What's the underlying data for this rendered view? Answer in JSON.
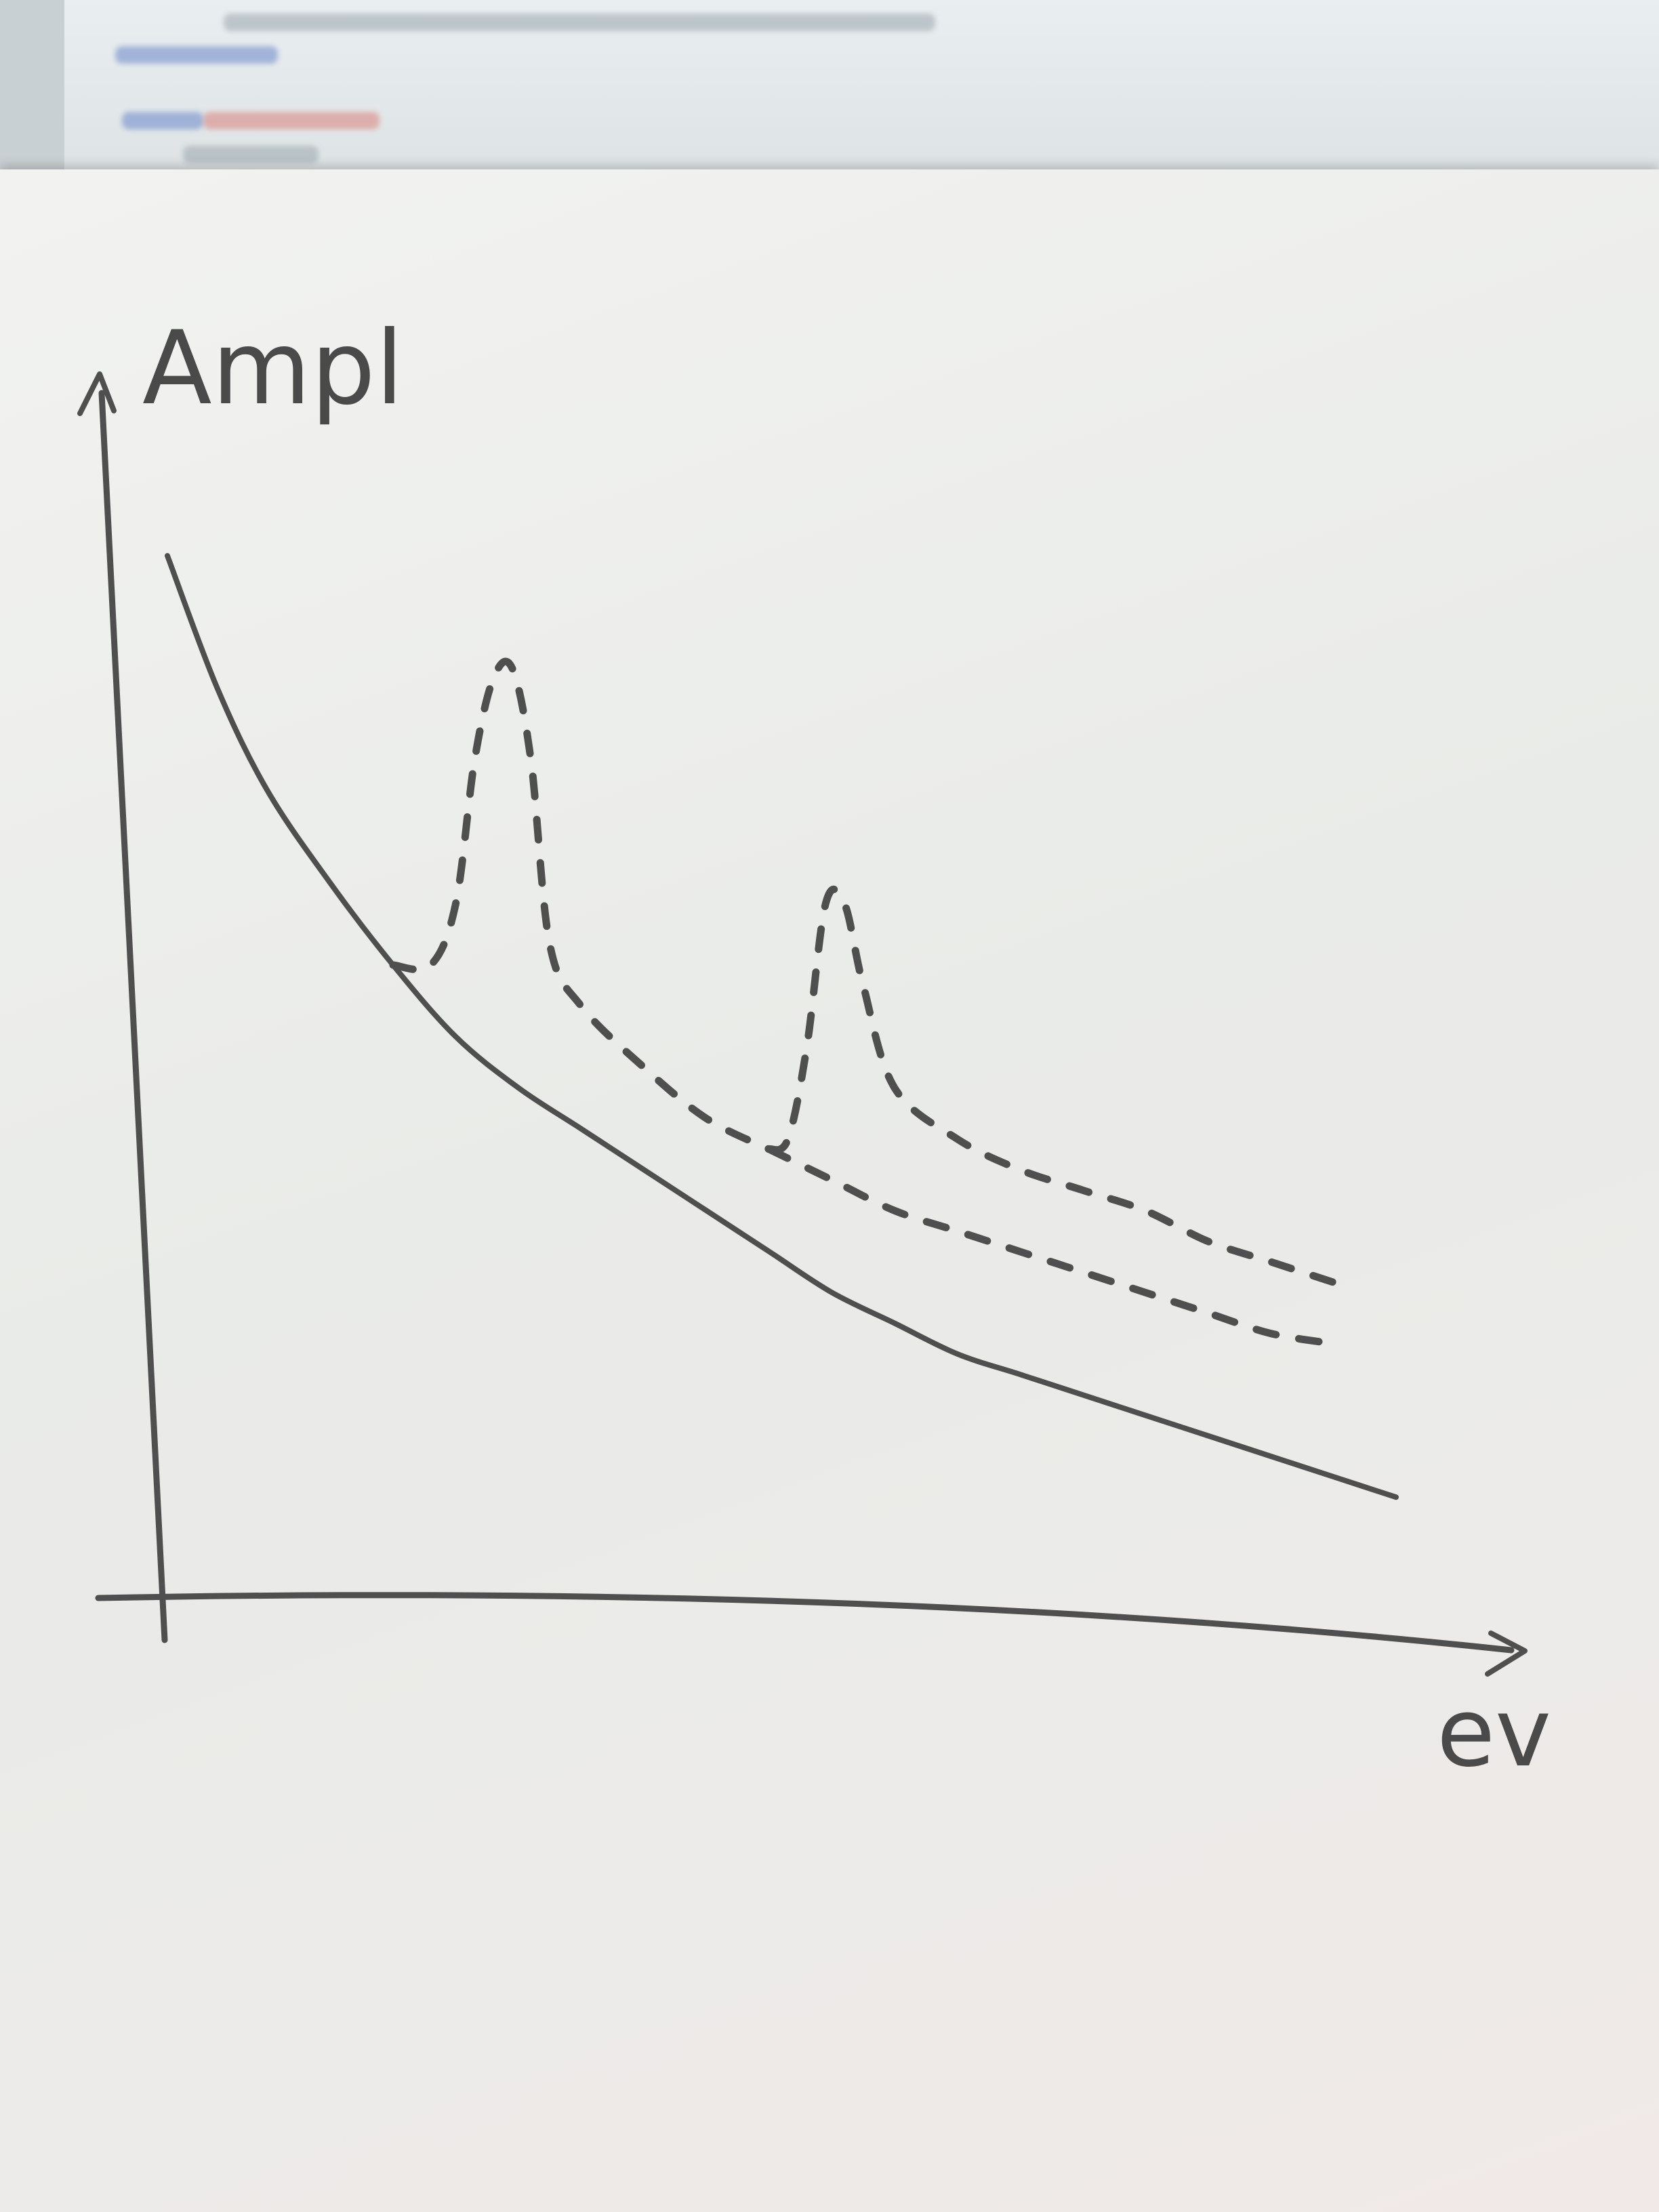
{
  "chart_data": {
    "type": "line",
    "title": "",
    "xlabel": "ev",
    "ylabel": "Ampl",
    "axis_ticks": false,
    "grid": false,
    "legend": "none",
    "xlim": [
      0,
      10
    ],
    "ylim": [
      0,
      10
    ],
    "colors": {
      "pencil": "#4f4f4f",
      "paper": "#eceeeb"
    },
    "series": [
      {
        "style": "solid",
        "x": [
          0.2,
          0.6,
          1.0,
          1.5,
          2.0,
          2.5,
          3.0,
          3.5,
          4.0,
          4.5,
          5.0,
          5.5,
          6.0,
          6.5,
          7.0,
          7.5,
          8.0,
          8.5,
          9.0,
          9.5,
          10.0
        ],
        "y": [
          10.0,
          8.7,
          7.7,
          6.8,
          6.0,
          5.3,
          4.8,
          4.4,
          4.0,
          3.6,
          3.2,
          2.8,
          2.5,
          2.2,
          2.0,
          1.8,
          1.6,
          1.4,
          1.2,
          1.0,
          0.8
        ]
      },
      {
        "style": "dashed",
        "x": [
          2.0,
          2.3,
          2.5,
          2.65,
          2.8,
          2.95,
          3.1,
          3.25,
          3.5,
          4.0,
          4.5,
          5.0
        ],
        "y": [
          6.0,
          6.0,
          6.6,
          8.0,
          8.8,
          8.9,
          8.0,
          6.2,
          5.6,
          5.0,
          4.5,
          4.2
        ]
      },
      {
        "style": "dashed",
        "x": [
          5.0,
          5.15,
          5.3,
          5.45,
          5.6,
          5.75,
          6.0,
          6.5,
          7.0,
          7.5,
          8.0,
          8.5,
          9.0,
          9.5
        ],
        "y": [
          4.2,
          4.3,
          5.2,
          6.6,
          6.6,
          5.8,
          4.8,
          4.3,
          4.0,
          3.8,
          3.6,
          3.3,
          3.1,
          2.9
        ]
      },
      {
        "style": "dashed",
        "x": [
          5.0,
          5.5,
          6.0,
          6.5,
          7.0,
          7.5,
          8.0,
          8.5,
          9.0,
          9.5
        ],
        "y": [
          4.2,
          3.9,
          3.6,
          3.4,
          3.2,
          3.0,
          2.8,
          2.6,
          2.4,
          2.3
        ]
      }
    ]
  }
}
